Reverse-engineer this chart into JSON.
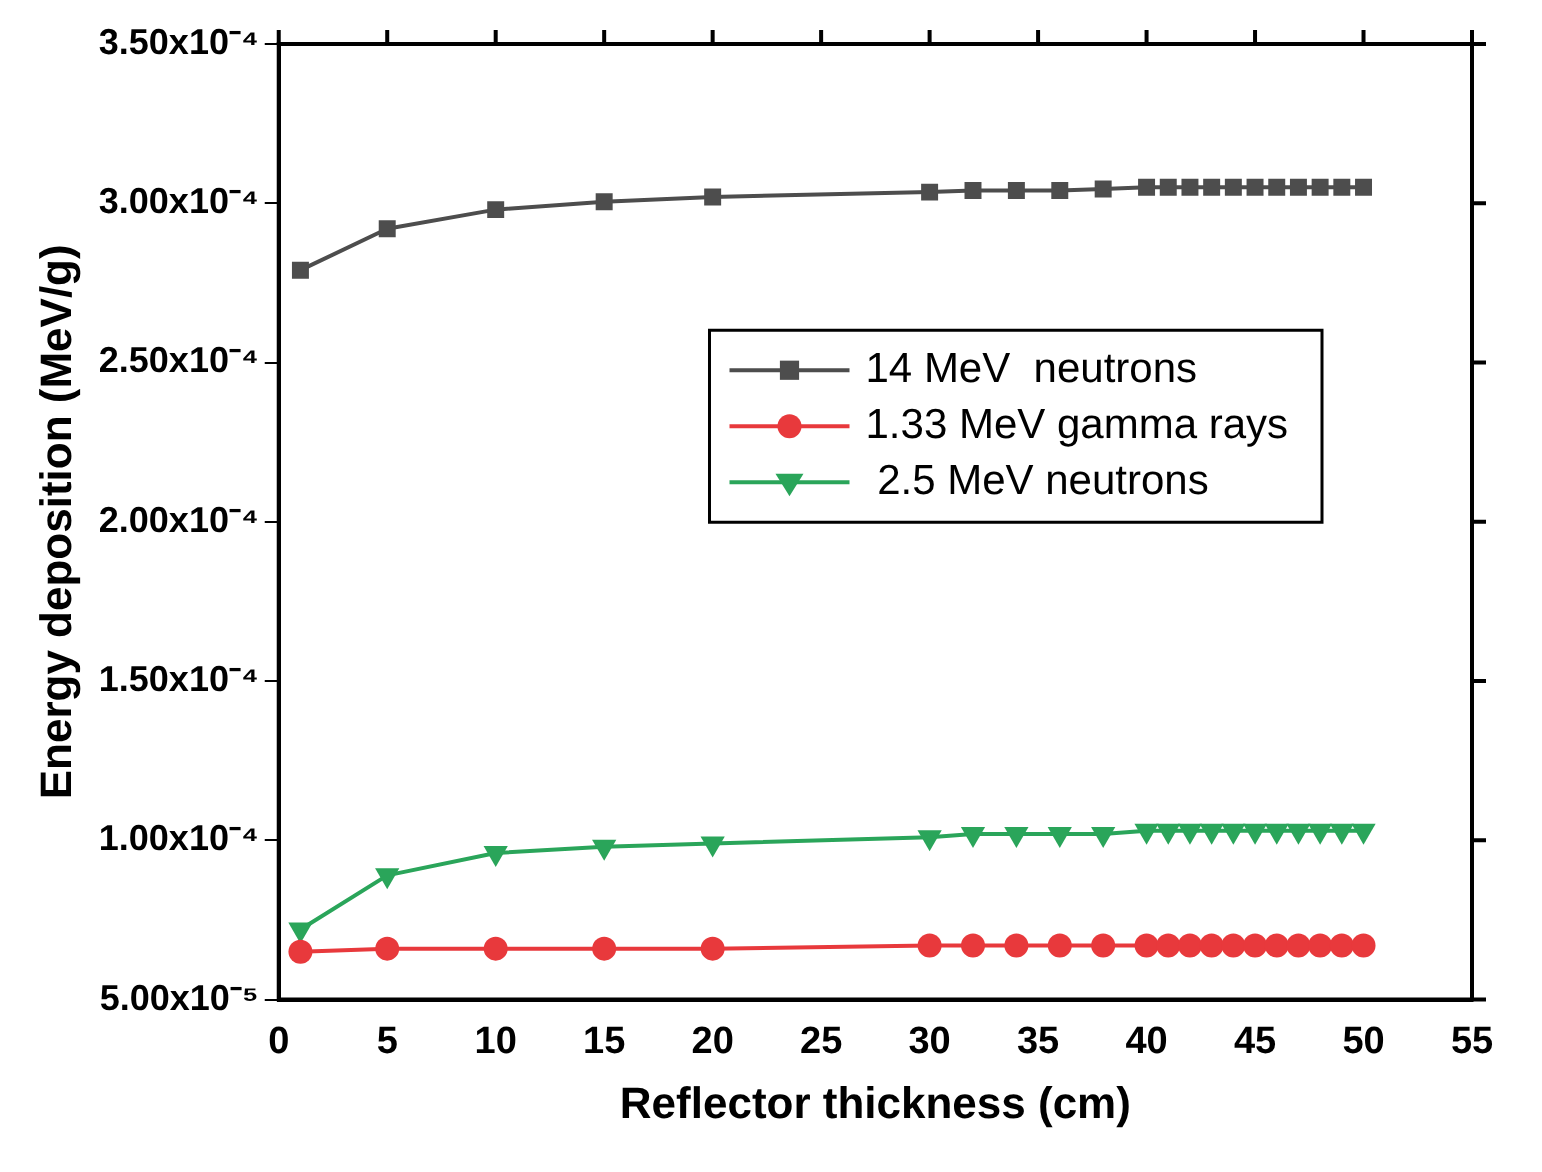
{
  "chart_data": {
    "type": "line",
    "xlabel": "Reflector thickness (cm)",
    "ylabel": "Energy deposition (MeV/g)",
    "x": [
      1,
      5,
      10,
      15,
      20,
      30,
      32,
      34,
      36,
      38,
      40,
      41,
      42,
      43,
      44,
      45,
      46,
      47,
      48,
      49,
      50
    ],
    "series": [
      {
        "name": "14 MeV  neutrons",
        "color": "#4d4d4d",
        "marker": "square",
        "values": [
          0.000279,
          0.000292,
          0.000298,
          0.0003005,
          0.000302,
          0.0003035,
          0.000304,
          0.000304,
          0.000304,
          0.0003045,
          0.000305,
          0.000305,
          0.000305,
          0.000305,
          0.000305,
          0.000305,
          0.000305,
          0.000305,
          0.000305,
          0.000305,
          0.000305
        ]
      },
      {
        "name": "1.33 MeV gamma rays",
        "color": "#e8393c",
        "marker": "circle",
        "values": [
          6.5e-05,
          6.6e-05,
          6.6e-05,
          6.6e-05,
          6.6e-05,
          6.7e-05,
          6.7e-05,
          6.7e-05,
          6.7e-05,
          6.7e-05,
          6.7e-05,
          6.7e-05,
          6.7e-05,
          6.7e-05,
          6.7e-05,
          6.7e-05,
          6.7e-05,
          6.7e-05,
          6.7e-05,
          6.7e-05,
          6.7e-05
        ]
      },
      {
        "name": " 2.5 MeV neutrons",
        "color": "#2aa55a",
        "marker": "triangle",
        "values": [
          7.2e-05,
          8.9e-05,
          9.6e-05,
          9.8e-05,
          9.9e-05,
          0.000101,
          0.000102,
          0.000102,
          0.000102,
          0.000102,
          0.000103,
          0.000103,
          0.000103,
          0.000103,
          0.000103,
          0.000103,
          0.000103,
          0.000103,
          0.000103,
          0.000103,
          0.000103
        ]
      }
    ],
    "xlim": [
      0,
      55
    ],
    "xticks": [
      0,
      5,
      10,
      15,
      20,
      25,
      30,
      35,
      40,
      45,
      50,
      55
    ],
    "ylim": [
      5e-05,
      0.00035
    ],
    "yticks": [
      {
        "value": 5e-05,
        "label": "5.00x10⁻⁵"
      },
      {
        "value": 0.0001,
        "label": "1.00x10⁻⁴"
      },
      {
        "value": 0.00015,
        "label": "1.50x10⁻⁴"
      },
      {
        "value": 0.0002,
        "label": "2.00x10⁻⁴"
      },
      {
        "value": 0.00025,
        "label": "2.50x10⁻⁴"
      },
      {
        "value": 0.0003,
        "label": "3.00x10⁻⁴"
      },
      {
        "value": 0.00035,
        "label": "3.50x10⁻⁴"
      }
    ],
    "grid": false,
    "legend": "right",
    "line_style": "solid"
  }
}
